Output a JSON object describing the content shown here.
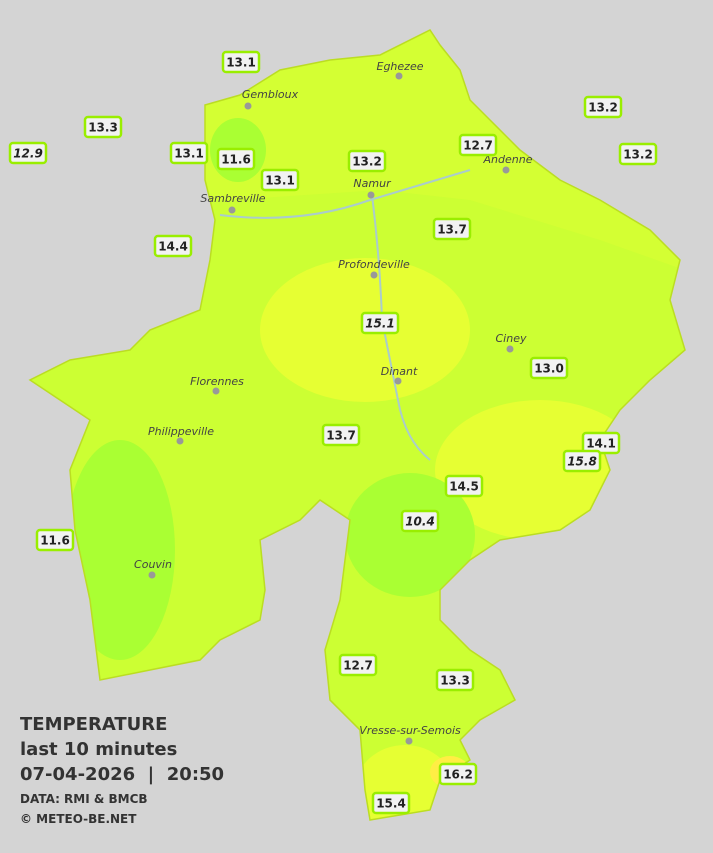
{
  "legend": {
    "title": "TEMPERATURE",
    "subtitle": "last 10 minutes",
    "datetime": "07-04-2026  |  20:50",
    "source": "DATA: RMI & BMCB",
    "credit": "© METEO-BE.NET"
  },
  "cities": [
    "Eghezee",
    "Gembloux",
    "Andenne",
    "Namur",
    "Sambreville",
    "Profondeville",
    "Ciney",
    "Dinant",
    "Florennes",
    "Philippeville",
    "Couvin",
    "Vresse-sur-Semois"
  ],
  "stations": [
    {
      "reading": "13.1"
    },
    {
      "reading": "13.3"
    },
    {
      "reading": "12.9",
      "italic": true
    },
    {
      "reading": "13.1"
    },
    {
      "reading": "11.6"
    },
    {
      "reading": "13.1"
    },
    {
      "reading": "13.2"
    },
    {
      "reading": "12.7"
    },
    {
      "reading": "13.2"
    },
    {
      "reading": "13.2"
    },
    {
      "reading": "14.4"
    },
    {
      "reading": "13.7"
    },
    {
      "reading": "15.1",
      "italic": true
    },
    {
      "reading": "13.0"
    },
    {
      "reading": "13.7"
    },
    {
      "reading": "14.1"
    },
    {
      "reading": "15.8",
      "italic": true
    },
    {
      "reading": "14.5"
    },
    {
      "reading": "10.4",
      "italic": true
    },
    {
      "reading": "11.6"
    },
    {
      "reading": "12.7"
    },
    {
      "reading": "13.3"
    },
    {
      "reading": "16.2"
    },
    {
      "reading": "15.4"
    }
  ]
}
